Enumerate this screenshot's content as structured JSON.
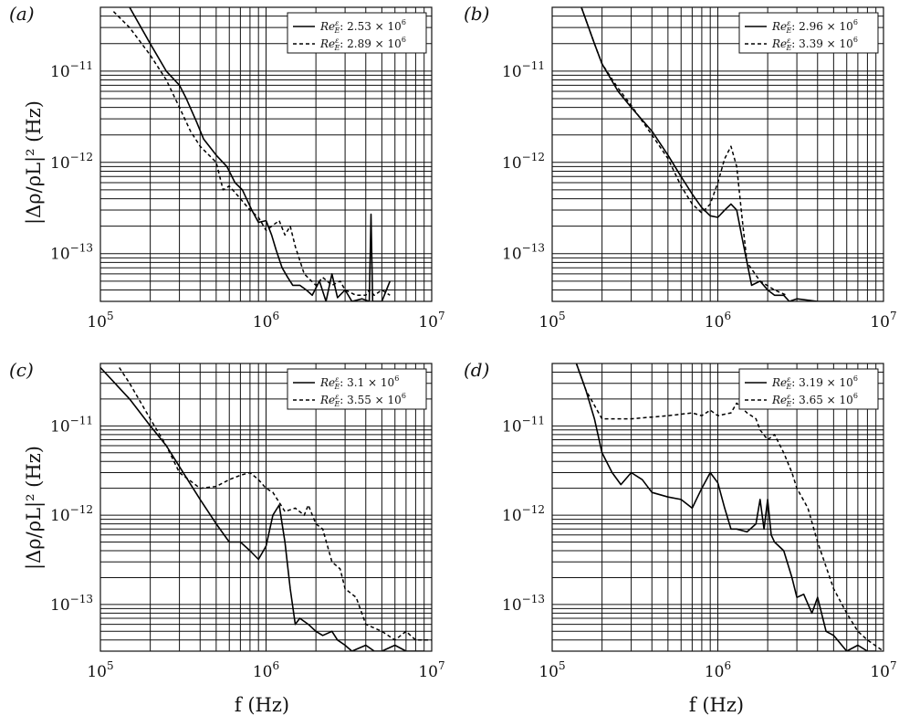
{
  "figure": {
    "ylabel": "|Δρ/ρL|² (Hz)",
    "xlabel": "f (Hz)"
  },
  "chart_data": [
    {
      "type": "line",
      "panel_label": "(a)",
      "xscale": "log",
      "yscale": "log",
      "xlim": [
        100000,
        10000000
      ],
      "ylim": [
        3e-14,
        5e-11
      ],
      "xticks": [
        "10^5",
        "10^6",
        "10^7"
      ],
      "yticks": [
        "10^-11",
        "10^-12",
        "10^-13"
      ],
      "grid": true,
      "legend_position": "top-right",
      "series": [
        {
          "name": "Re_E^ε: 2.53 × 10^6",
          "style": "solid",
          "x": [
            150000,
            200000,
            250000,
            300000,
            330000,
            380000,
            420000,
            500000,
            580000,
            650000,
            720000,
            820000,
            900000,
            1000000,
            1080000,
            1150000,
            1250000,
            1350000,
            1450000,
            1600000,
            1750000,
            1900000,
            2100000,
            2300000,
            2500000,
            2700000,
            3000000,
            3300000,
            3800000,
            4200000,
            4300000,
            4400000,
            5000000,
            5600000
          ],
          "y": [
            5e-11,
            2e-11,
            1e-11,
            7e-12,
            5e-12,
            2.8e-12,
            1.8e-12,
            1.2e-12,
            9e-13,
            6e-13,
            5e-13,
            3e-13,
            2.2e-13,
            2.3e-13,
            1.6e-13,
            1.1e-13,
            7e-14,
            5.5e-14,
            4.5e-14,
            4.5e-14,
            4e-14,
            3.5e-14,
            5e-14,
            3e-14,
            6e-14,
            3.3e-14,
            4e-14,
            3e-14,
            3.2e-14,
            3e-14,
            2.7e-13,
            3e-14,
            3e-14,
            5e-14
          ]
        },
        {
          "name": "Re_E^ε: 2.89 × 10^6",
          "style": "dashed",
          "x": [
            120000,
            150000,
            200000,
            250000,
            300000,
            350000,
            400000,
            500000,
            550000,
            600000,
            700000,
            800000,
            900000,
            1000000,
            1200000,
            1300000,
            1400000,
            1500000,
            1700000,
            2000000,
            2200000,
            2500000,
            2800000,
            3000000,
            3500000,
            4000000,
            4200000,
            4500000,
            5000000,
            5600000
          ],
          "y": [
            4.5e-11,
            3e-11,
            1.5e-11,
            8e-12,
            4e-12,
            2.2e-12,
            1.5e-12,
            1e-12,
            5e-13,
            5.5e-13,
            4e-13,
            3e-13,
            2.5e-13,
            1.8e-13,
            2.3e-13,
            1.6e-13,
            2e-13,
            1.2e-13,
            6e-14,
            4.5e-14,
            5.5e-14,
            4.5e-14,
            5e-14,
            4e-14,
            3.5e-14,
            3.5e-14,
            4e-14,
            3.5e-14,
            4e-14,
            3.5e-14
          ]
        }
      ]
    },
    {
      "type": "line",
      "panel_label": "(b)",
      "xscale": "log",
      "yscale": "log",
      "xlim": [
        100000,
        10000000
      ],
      "ylim": [
        3e-14,
        5e-11
      ],
      "xticks": [
        "10^5",
        "10^6",
        "10^7"
      ],
      "yticks": [
        "10^-11",
        "10^-12",
        "10^-13"
      ],
      "grid": true,
      "legend_position": "top-right",
      "series": [
        {
          "name": "Re_E^ε: 2.96 × 10^6",
          "style": "solid",
          "x": [
            150000,
            180000,
            200000,
            250000,
            300000,
            400000,
            500000,
            600000,
            700000,
            800000,
            900000,
            1000000,
            1100000,
            1200000,
            1300000,
            1400000,
            1500000,
            1600000,
            1800000,
            2000000,
            2200000,
            2500000,
            2700000,
            3000000,
            4000000,
            4500000,
            5000000,
            5500000
          ],
          "y": [
            5e-11,
            2e-11,
            1.2e-11,
            6e-12,
            4e-12,
            2.2e-12,
            1.2e-12,
            7e-13,
            4.5e-13,
            3.2e-13,
            2.6e-13,
            2.5e-13,
            3e-13,
            3.5e-13,
            3e-13,
            1.5e-13,
            8e-14,
            4.5e-14,
            5e-14,
            4e-14,
            3.5e-14,
            3.5e-14,
            3e-14,
            3.2e-14,
            3e-14,
            3e-14,
            3e-14,
            3e-14
          ]
        },
        {
          "name": "Re_E^ε: 3.39 × 10^6",
          "style": "dashed",
          "x": [
            150000,
            180000,
            200000,
            250000,
            300000,
            400000,
            500000,
            600000,
            700000,
            800000,
            900000,
            1000000,
            1100000,
            1200000,
            1300000,
            1400000,
            1500000,
            1800000,
            2200000,
            2600000
          ],
          "y": [
            5e-11,
            2e-11,
            1.2e-11,
            6.5e-12,
            4.2e-12,
            2e-12,
            1.1e-12,
            5.5e-13,
            3.5e-13,
            2.8e-13,
            3.5e-13,
            6e-13,
            1.1e-12,
            1.5e-12,
            9e-13,
            2.5e-13,
            8e-14,
            5e-14,
            4e-14,
            3.5e-14
          ]
        }
      ]
    },
    {
      "type": "line",
      "panel_label": "(c)",
      "xscale": "log",
      "yscale": "log",
      "xlim": [
        100000,
        10000000
      ],
      "ylim": [
        3e-14,
        5e-11
      ],
      "xticks": [
        "10^5",
        "10^6",
        "10^7"
      ],
      "yticks": [
        "10^-11",
        "10^-12",
        "10^-13"
      ],
      "grid": true,
      "legend_position": "top-right",
      "series": [
        {
          "name": "Re_E^ε: 3.1 × 10^6",
          "style": "solid",
          "x": [
            100000,
            150000,
            200000,
            250000,
            300000,
            400000,
            500000,
            600000,
            700000,
            800000,
            900000,
            1000000,
            1100000,
            1200000,
            1300000,
            1400000,
            1500000,
            1600000,
            1800000,
            2000000,
            2200000,
            2500000,
            2700000,
            3000000,
            3300000,
            4000000,
            4500000,
            5000000,
            6000000,
            7000000,
            8000000,
            9000000
          ],
          "y": [
            4.5e-11,
            2e-11,
            1e-11,
            6e-12,
            3.5e-12,
            1.5e-12,
            8e-13,
            5e-13,
            5e-13,
            4e-13,
            3.2e-13,
            4.5e-13,
            1e-12,
            1.3e-12,
            5e-13,
            1.5e-13,
            6e-14,
            7e-14,
            6e-14,
            5e-14,
            4.5e-14,
            5e-14,
            4e-14,
            3.5e-14,
            3e-14,
            3.5e-14,
            3e-14,
            3e-14,
            3.5e-14,
            3e-14,
            3e-14,
            3e-14
          ]
        },
        {
          "name": "Re_E^ε: 3.55 × 10^6",
          "style": "dashed",
          "x": [
            130000,
            150000,
            200000,
            250000,
            300000,
            400000,
            500000,
            600000,
            700000,
            800000,
            900000,
            1000000,
            1100000,
            1300000,
            1500000,
            1700000,
            1800000,
            2000000,
            2200000,
            2500000,
            2800000,
            3000000,
            3500000,
            4000000,
            5000000,
            6000000,
            7000000,
            8000000,
            10000000
          ],
          "y": [
            4.5e-11,
            3e-11,
            1.2e-11,
            6e-12,
            3e-12,
            2e-12,
            2.1e-12,
            2.5e-12,
            2.8e-12,
            3e-12,
            2.5e-12,
            2e-12,
            1.8e-12,
            1.1e-12,
            1.2e-12,
            1e-12,
            1.3e-12,
            8e-13,
            7e-13,
            3e-13,
            2.5e-13,
            1.5e-13,
            1.2e-13,
            6e-14,
            5e-14,
            4e-14,
            5e-14,
            4e-14,
            4e-14
          ]
        }
      ]
    },
    {
      "type": "line",
      "panel_label": "(d)",
      "xscale": "log",
      "yscale": "log",
      "xlim": [
        100000,
        10000000
      ],
      "ylim": [
        3e-14,
        5e-11
      ],
      "xticks": [
        "10^5",
        "10^6",
        "10^7"
      ],
      "yticks": [
        "10^-11",
        "10^-12",
        "10^-13"
      ],
      "grid": true,
      "legend_position": "top-right",
      "series": [
        {
          "name": "Re_E^ε: 3.19 × 10^6",
          "style": "solid",
          "x": [
            140000,
            160000,
            180000,
            200000,
            230000,
            260000,
            300000,
            350000,
            400000,
            500000,
            600000,
            700000,
            800000,
            900000,
            1000000,
            1100000,
            1200000,
            1300000,
            1500000,
            1700000,
            1800000,
            1900000,
            2000000,
            2100000,
            2200000,
            2500000,
            2800000,
            3000000,
            3300000,
            3700000,
            4000000,
            4500000,
            5000000,
            6000000,
            7000000,
            8000000,
            9000000
          ],
          "y": [
            5e-11,
            2.5e-11,
            1.2e-11,
            5e-12,
            3e-12,
            2.2e-12,
            3e-12,
            2.5e-12,
            1.8e-12,
            1.6e-12,
            1.5e-12,
            1.2e-12,
            2e-12,
            3e-12,
            2.3e-12,
            1.2e-12,
            7e-13,
            7e-13,
            6.5e-13,
            8e-13,
            1.5e-12,
            7e-13,
            1.5e-12,
            6e-13,
            5e-13,
            4e-13,
            2e-13,
            1.2e-13,
            1.3e-13,
            8e-14,
            1.2e-13,
            5e-14,
            4.5e-14,
            3e-14,
            3.5e-14,
            3e-14,
            3e-14
          ]
        },
        {
          "name": "Re_E^ε: 3.65 × 10^6",
          "style": "dashed",
          "x": [
            140000,
            160000,
            200000,
            300000,
            500000,
            700000,
            800000,
            900000,
            1000000,
            1200000,
            1300000,
            1500000,
            1700000,
            1800000,
            2000000,
            2200000,
            2500000,
            2800000,
            3000000,
            3500000,
            4000000,
            5000000,
            6000000,
            7000000,
            8000000,
            10000000
          ],
          "y": [
            5e-11,
            2.5e-11,
            1.2e-11,
            1.2e-11,
            1.3e-11,
            1.4e-11,
            1.3e-11,
            1.5e-11,
            1.3e-11,
            1.4e-11,
            1.8e-11,
            1.4e-11,
            1.2e-11,
            9e-12,
            7e-12,
            8e-12,
            5e-12,
            3e-12,
            2e-12,
            1.2e-12,
            5e-13,
            1.5e-13,
            8e-14,
            5e-14,
            4e-14,
            3e-14
          ]
        }
      ]
    }
  ]
}
